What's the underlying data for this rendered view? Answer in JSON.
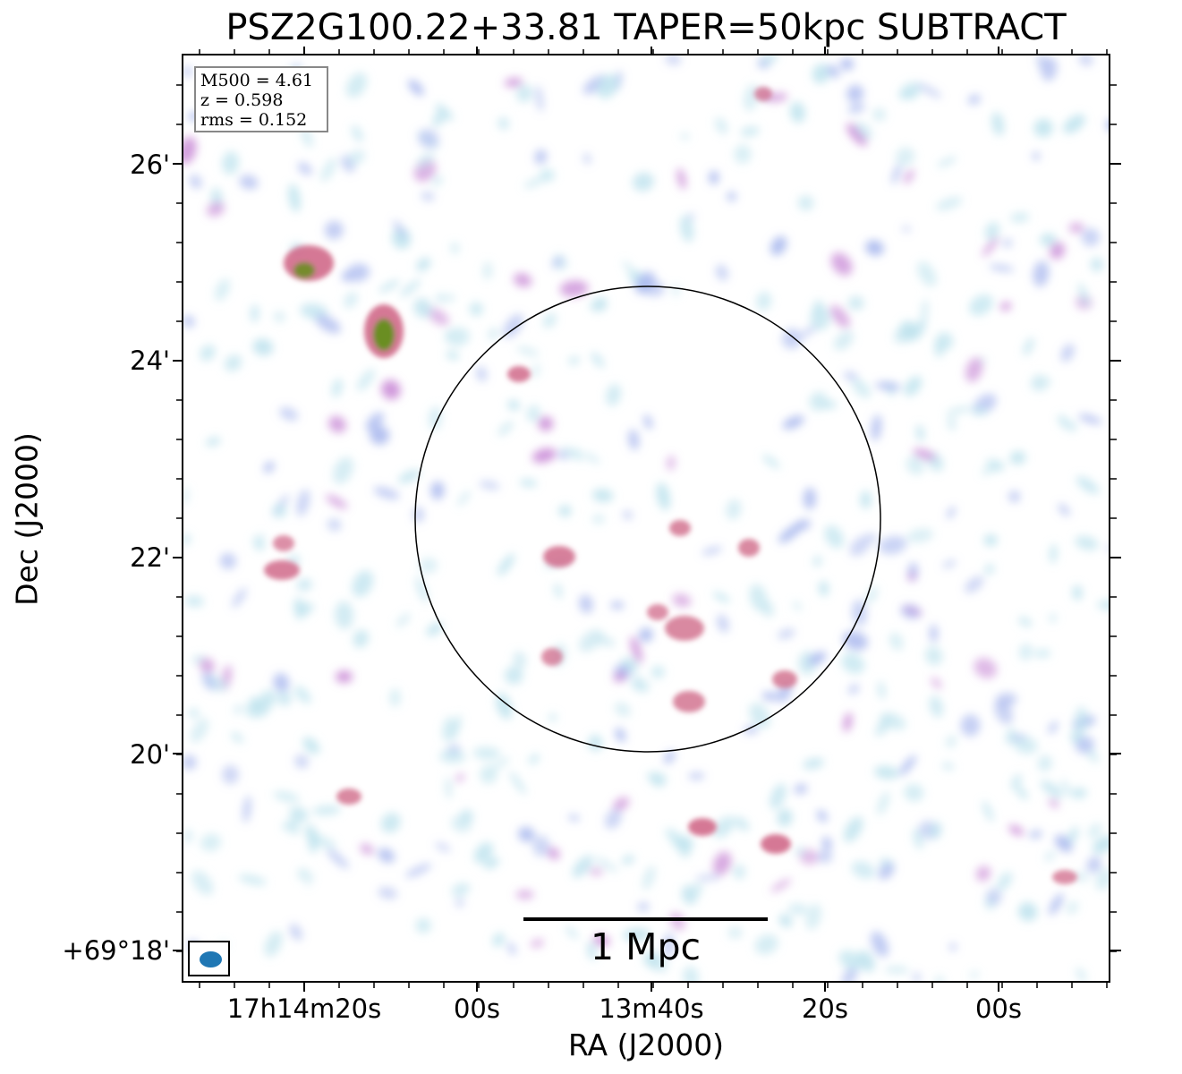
{
  "title": "PSZ2G100.22+33.81 TAPER=50kpc SUBTRACT",
  "axes": {
    "x_label": "RA (J2000)",
    "y_label": "Dec (J2000)",
    "x_ticks": [
      "17h14m20s",
      "00s",
      "13m40s",
      "20s",
      "00s"
    ],
    "y_ticks": [
      "26'",
      "24'",
      "22'",
      "20'",
      "+69°18'"
    ]
  },
  "info": {
    "m500": "M500 = 4.61",
    "z": "z = 0.598",
    "rms": "rms = 0.152"
  },
  "scale_bar": {
    "label": "1 Mpc"
  },
  "beam": {
    "color": "#1f77b4"
  },
  "colors": {
    "noise_low": "#bfe3ee",
    "noise_mid": "#a9b8ee",
    "emission": "#c98ad6",
    "bright": "#d06a8a",
    "peak": "#6b8e23"
  }
}
